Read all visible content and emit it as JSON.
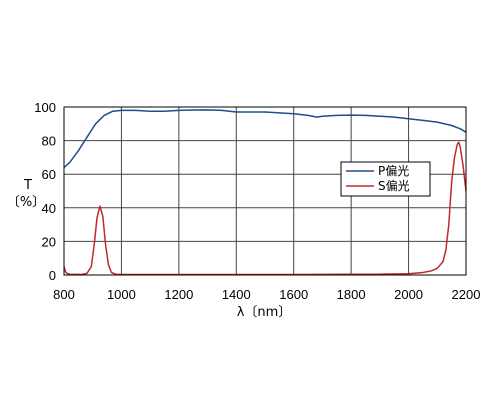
{
  "chart_data": {
    "type": "line",
    "xlabel": "λ〔nm〕",
    "ylabel_top": "T",
    "ylabel_bottom": "〔%〕",
    "xlim": [
      800,
      2200
    ],
    "ylim": [
      0,
      100
    ],
    "xticks": [
      800,
      1000,
      1200,
      1400,
      1600,
      1800,
      2000,
      2200
    ],
    "yticks": [
      0,
      20,
      40,
      60,
      80,
      100
    ],
    "grid": true,
    "legend_position": "right",
    "series": [
      {
        "name": "P偏光",
        "color": "#1f4e8c",
        "x": [
          800,
          820,
          850,
          880,
          910,
          940,
          970,
          1000,
          1050,
          1100,
          1150,
          1200,
          1250,
          1300,
          1350,
          1400,
          1450,
          1500,
          1550,
          1600,
          1650,
          1680,
          1700,
          1750,
          1800,
          1850,
          1900,
          1950,
          2000,
          2050,
          2100,
          2150,
          2180,
          2200
        ],
        "y": [
          64,
          67,
          74,
          82,
          90,
          95,
          97.5,
          98,
          98,
          97.5,
          97.5,
          98,
          98.2,
          98.3,
          98,
          97,
          97,
          97,
          96.5,
          96,
          95,
          94,
          94.5,
          95,
          95.2,
          95,
          94.5,
          94,
          93,
          92,
          91,
          89,
          87,
          85
        ]
      },
      {
        "name": "S偏光",
        "color": "#c0282d",
        "x": [
          800,
          805,
          810,
          820,
          860,
          880,
          895,
          905,
          915,
          925,
          935,
          945,
          955,
          965,
          980,
          1000,
          1200,
          1400,
          1600,
          1800,
          1900,
          2000,
          2050,
          2080,
          2100,
          2120,
          2130,
          2140,
          2150,
          2160,
          2170,
          2175,
          2180,
          2190,
          2200
        ],
        "y": [
          5,
          2,
          1,
          0.5,
          0.3,
          1,
          5,
          18,
          34,
          41,
          35,
          18,
          6,
          1.5,
          0.5,
          0.3,
          0.3,
          0.3,
          0.3,
          0.5,
          0.5,
          0.8,
          1.5,
          2.5,
          4,
          8,
          15,
          30,
          55,
          70,
          78,
          79,
          76,
          65,
          50
        ]
      }
    ]
  }
}
